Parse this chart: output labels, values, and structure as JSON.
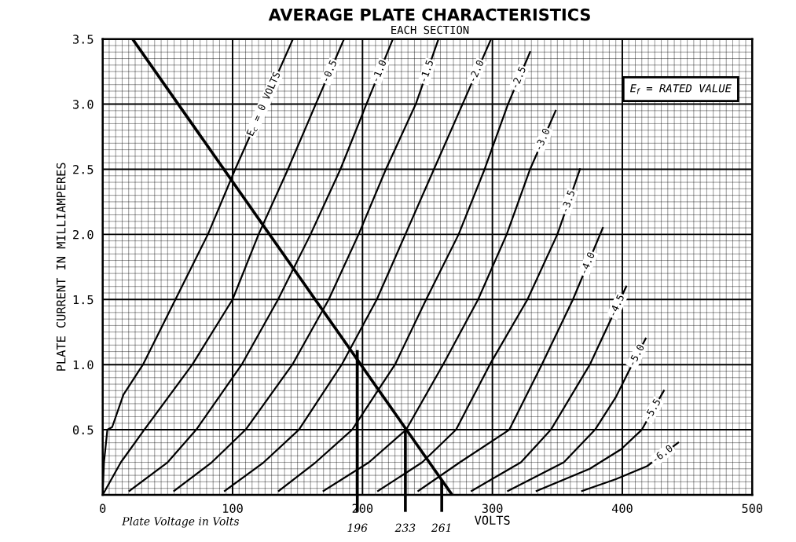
{
  "chart_data": {
    "type": "line",
    "title": "AVERAGE PLATE CHARACTERISTICS",
    "subtitle": "EACH SECTION",
    "xlabel": "VOLTS",
    "ylabel": "PLATE CURRENT IN MILLIAMPERES",
    "xlim": [
      0,
      500
    ],
    "ylim": [
      0,
      3.5
    ],
    "xticks": [
      0,
      100,
      200,
      300,
      400,
      500
    ],
    "yticks": [
      0.5,
      {
        "value": 1,
        "label": "1.0"
      },
      1.5,
      {
        "value": 2,
        "label": "2.0"
      },
      2.5,
      {
        "value": 3,
        "label": "3.0"
      },
      3.5
    ],
    "grid": true,
    "marker": "none",
    "line_style": "solid",
    "series": [
      {
        "name": "E$_{c}$ = 0 VOLTS",
        "color": "#000000",
        "x": [
          0,
          1,
          3.6,
          7.3,
          16,
          31,
          56,
          81,
          102,
          146.5
        ],
        "values": [
          0,
          0.25,
          0.5,
          0.52,
          0.77,
          1.0,
          1.5,
          2.0,
          2.5,
          3.5
        ]
      },
      {
        "name": "-0.5",
        "color": "#000000",
        "x": [
          0,
          14,
          32,
          69,
          100,
          120,
          142.6,
          164,
          185.8
        ],
        "values": [
          0,
          0.25,
          0.5,
          1.0,
          1.5,
          2.0,
          2.5,
          3.0,
          3.5
        ]
      },
      {
        "name": "-1.0",
        "color": "#000000",
        "x": [
          20.6,
          50,
          72,
          107,
          135,
          160,
          183,
          203,
          223.4
        ],
        "values": [
          0.03,
          0.25,
          0.5,
          1.0,
          1.5,
          2.0,
          2.5,
          3.0,
          3.5
        ]
      },
      {
        "name": "-1.5",
        "color": "#000000",
        "x": [
          55,
          84,
          110,
          146,
          174,
          197,
          218,
          241,
          258.5
        ],
        "values": [
          0.03,
          0.25,
          0.5,
          1.0,
          1.5,
          2.0,
          2.5,
          3.0,
          3.5
        ]
      },
      {
        "name": "-2.0",
        "color": "#000000",
        "x": [
          94,
          124,
          151,
          184,
          211,
          233,
          255,
          277,
          299
        ],
        "values": [
          0.03,
          0.25,
          0.5,
          1.0,
          1.5,
          2.0,
          2.5,
          3.0,
          3.5
        ]
      },
      {
        "name": "-2.5",
        "color": "#000000",
        "x": [
          135.6,
          164,
          192,
          225,
          249,
          274,
          294,
          312,
          329
        ],
        "values": [
          0.03,
          0.25,
          0.5,
          1.0,
          1.5,
          2.0,
          2.5,
          3.0,
          3.4
        ]
      },
      {
        "name": "-3.0",
        "color": "#000000",
        "x": [
          170,
          205,
          233.6,
          262,
          289,
          311,
          329,
          348.7
        ],
        "values": [
          0.03,
          0.25,
          0.5,
          1.0,
          1.5,
          2.0,
          2.5,
          2.95
        ]
      },
      {
        "name": "-3.5",
        "color": "#000000",
        "x": [
          212,
          246,
          272,
          298,
          327,
          350,
          367.4
        ],
        "values": [
          0.03,
          0.25,
          0.5,
          1.0,
          1.5,
          2.0,
          2.5
        ]
      },
      {
        "name": "-4.0",
        "color": "#000000",
        "x": [
          243,
          275,
          313,
          338,
          362,
          385
        ],
        "values": [
          0.03,
          0.25,
          0.5,
          1.0,
          1.5,
          2.05
        ]
      },
      {
        "name": "-4.5",
        "color": "#000000",
        "x": [
          284,
          322,
          345,
          375,
          389,
          403
        ],
        "values": [
          0.03,
          0.25,
          0.5,
          1.0,
          1.3,
          1.6
        ]
      },
      {
        "name": "-5.0",
        "color": "#000000",
        "x": [
          312,
          355,
          379,
          395,
          405,
          418
        ],
        "values": [
          0.03,
          0.25,
          0.5,
          0.75,
          0.95,
          1.2
        ]
      },
      {
        "name": "-5.5",
        "color": "#000000",
        "x": [
          334,
          375,
          399,
          415,
          432
        ],
        "values": [
          0.03,
          0.2,
          0.35,
          0.5,
          0.8
        ]
      },
      {
        "name": "-6.0",
        "color": "#000000",
        "x": [
          369,
          395,
          419,
          443
        ],
        "values": [
          0.03,
          0.12,
          0.22,
          0.4
        ]
      },
      {
        "color": "#000000",
        "x": [
          23,
          269
        ],
        "values": [
          3.5,
          0
        ]
      }
    ],
    "annotations": [
      "E$_{f}$ = RATED VALUE",
      "Plate Voltage in Volts",
      {
        "text": "196",
        "x": 196,
        "y": 1.1
      },
      {
        "text": "233",
        "x": 233,
        "y": 0.5
      },
      {
        "text": "261",
        "x": 261,
        "y": 0.1
      }
    ]
  }
}
